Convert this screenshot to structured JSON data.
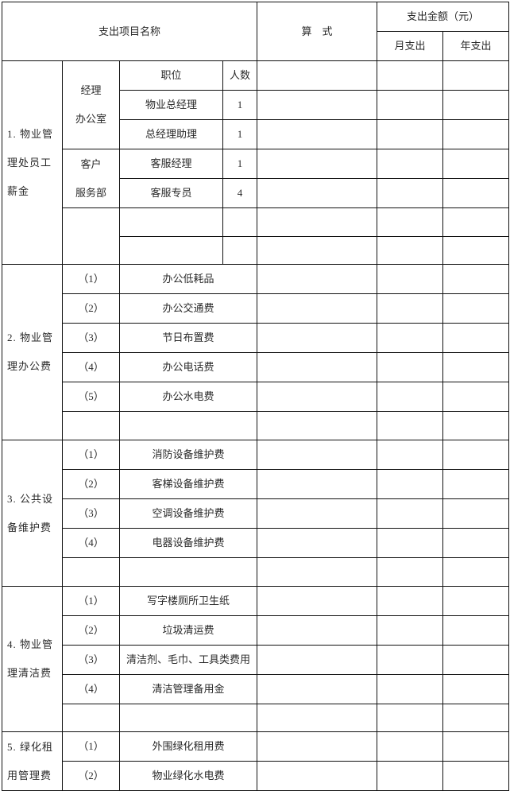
{
  "header": {
    "item_name": "支出项目名称",
    "formula": "算　式",
    "amount": "支出金额（元）",
    "monthly": "月支出",
    "yearly": "年支出"
  },
  "section1": {
    "title_lines": [
      "1. 物业管",
      "理处员工",
      "薪金"
    ],
    "position_header": "职位",
    "count_header": "人数",
    "departments": [
      {
        "name_lines": [
          "经理",
          "办公室"
        ],
        "staff": [
          {
            "position": "物业总经理",
            "count": "1"
          },
          {
            "position": "总经理助理",
            "count": "1"
          }
        ]
      },
      {
        "name_lines": [
          "客户",
          "服务部"
        ],
        "staff": [
          {
            "position": "客服经理",
            "count": "1"
          },
          {
            "position": "客服专员",
            "count": "4"
          }
        ]
      }
    ]
  },
  "sections": [
    {
      "title_lines": [
        "2. 物业管",
        "理办公费"
      ],
      "blank_rows": 1,
      "items": [
        {
          "no": "（1）",
          "name": "办公低耗品"
        },
        {
          "no": "（2）",
          "name": "办公交通费"
        },
        {
          "no": "（3）",
          "name": "节日布置费"
        },
        {
          "no": "（4）",
          "name": "办公电话费"
        },
        {
          "no": "（5）",
          "name": "办公水电费"
        }
      ]
    },
    {
      "title_lines": [
        "3. 公共设",
        "备维护费"
      ],
      "blank_rows": 1,
      "items": [
        {
          "no": "（1）",
          "name": "消防设备维护费"
        },
        {
          "no": "（2）",
          "name": "客梯设备维护费"
        },
        {
          "no": "（3）",
          "name": "空调设备维护费"
        },
        {
          "no": "（4）",
          "name": "电器设备维护费"
        }
      ]
    },
    {
      "title_lines": [
        "4. 物业管",
        "理清洁费"
      ],
      "blank_rows": 1,
      "items": [
        {
          "no": "（1）",
          "name": "写字楼厕所卫生纸"
        },
        {
          "no": "（2）",
          "name": "垃圾清运费"
        },
        {
          "no": "（3）",
          "name": "清洁剂、毛巾、工具类费用"
        },
        {
          "no": "（4）",
          "name": "清洁管理备用金"
        }
      ]
    },
    {
      "title_lines": [
        "5. 绿化租",
        "用管理费"
      ],
      "blank_rows": 0,
      "items": [
        {
          "no": "（1）",
          "name": "外围绿化租用费"
        },
        {
          "no": "（2）",
          "name": "物业绿化水电费"
        }
      ]
    }
  ]
}
